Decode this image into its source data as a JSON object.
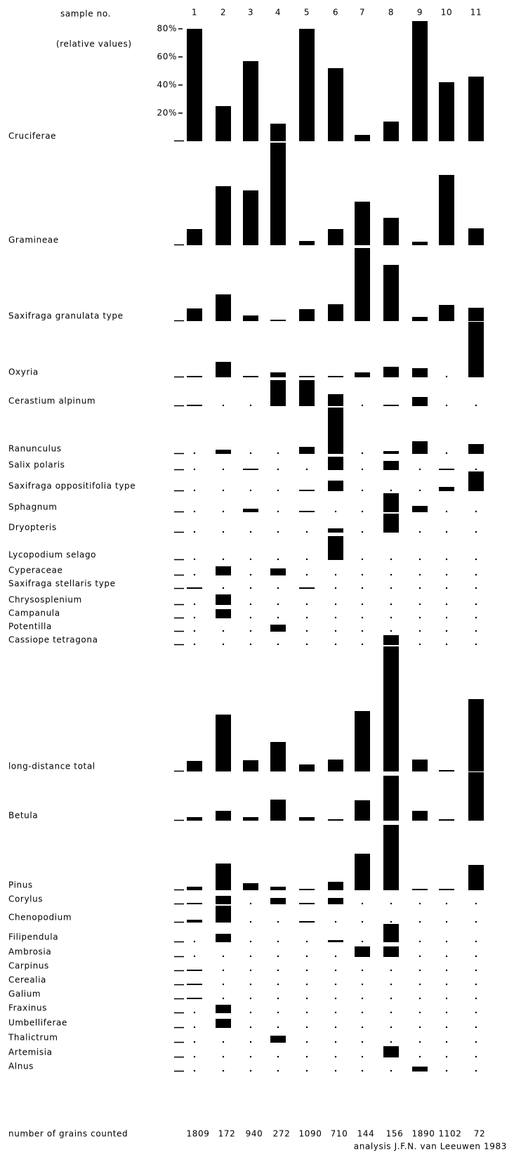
{
  "chart_data": {
    "type": "bar",
    "title": "sample no.",
    "y_label": "(relative values)",
    "categories": [
      "1",
      "2",
      "3",
      "4",
      "5",
      "6",
      "7",
      "8",
      "9",
      "10",
      "11"
    ],
    "ylim": [
      0,
      80
    ],
    "yticks": [
      {
        "value": 20,
        "label": "20%"
      },
      {
        "value": 40,
        "label": "40%"
      },
      {
        "value": 60,
        "label": "60%"
      },
      {
        "value": 80,
        "label": "80%"
      }
    ],
    "grid": false,
    "color": "#000000",
    "series": [
      {
        "name": "Cruciferae",
        "values": [
          80,
          25,
          57,
          12.5,
          80,
          52,
          4.5,
          14,
          85.5,
          42,
          46
        ]
      },
      {
        "name": "Gramineae",
        "values": [
          11.5,
          42,
          39,
          73,
          3,
          11.5,
          31,
          19.5,
          2.5,
          50,
          12
        ]
      },
      {
        "name": "Saxifraga granulata type",
        "values": [
          9,
          19,
          4,
          1,
          8.5,
          12,
          52,
          40,
          3,
          11.5,
          9.5
        ]
      },
      {
        "name": "Oxyria",
        "values": [
          1,
          11,
          1,
          3.5,
          1,
          1,
          3.5,
          7.5,
          6.5,
          0.5,
          39.5
        ]
      },
      {
        "name": "Cerastium alpinum",
        "values": [
          1,
          0.5,
          0.5,
          18.5,
          18.5,
          8.5,
          0.5,
          1,
          6.5,
          0.5,
          0.5
        ]
      },
      {
        "name": "Ranunculus",
        "values": [
          0.5,
          3,
          0.5,
          0.5,
          5,
          33,
          0.5,
          2,
          9,
          0.5,
          7
        ]
      },
      {
        "name": "Salix polaris",
        "values": [
          0.5,
          0.5,
          1,
          0.5,
          0.5,
          9.5,
          0.5,
          6.5,
          0.5,
          1,
          0.5
        ]
      },
      {
        "name": "Saxifraga oppositifolia type",
        "values": [
          0.5,
          0.5,
          0.5,
          0.5,
          1,
          7.5,
          0.5,
          0.5,
          0.5,
          3,
          14
        ]
      },
      {
        "name": "Sphagnum",
        "values": [
          0.5,
          0.5,
          2.5,
          0.5,
          1,
          0.5,
          0.5,
          13.5,
          4.5,
          0.5,
          0.5
        ]
      },
      {
        "name": "Dryopteris",
        "values": [
          0.5,
          0.5,
          0.5,
          0.5,
          0.5,
          3,
          0.5,
          13.5,
          0.5,
          0.5,
          0.5
        ]
      },
      {
        "name": "Lycopodium selago",
        "values": [
          0.5,
          0.5,
          0.5,
          0.5,
          0.5,
          17,
          0.5,
          0.5,
          0.5,
          0.5,
          0.5
        ]
      },
      {
        "name": "Cyperaceae",
        "values": [
          0.5,
          6.5,
          0.5,
          5,
          0.5,
          0.5,
          0.5,
          0.5,
          0.5,
          0.5,
          0.5
        ]
      },
      {
        "name": "Saxifraga stellaris type",
        "values": [
          1,
          0.5,
          0.5,
          0.5,
          1,
          0.5,
          0.5,
          0.5,
          0.5,
          0.5,
          0.5
        ]
      },
      {
        "name": "Chrysosplenium",
        "values": [
          0.5,
          7.5,
          0.5,
          0.5,
          0.5,
          0.5,
          0.5,
          0.5,
          0.5,
          0.5,
          0.5
        ]
      },
      {
        "name": "Campanula",
        "values": [
          0.5,
          6.5,
          0.5,
          0.5,
          0.5,
          0.5,
          0.5,
          0.5,
          0.5,
          0.5,
          0.5
        ]
      },
      {
        "name": "Potentilla",
        "values": [
          0.5,
          0.5,
          0.5,
          5,
          0.5,
          0.5,
          0.5,
          0.5,
          0.5,
          0.5,
          0.5
        ]
      },
      {
        "name": "Cassiope tetragona",
        "values": [
          0.5,
          0.5,
          0.5,
          0.5,
          0.5,
          0.5,
          0.5,
          7,
          0.5,
          0.5,
          0.5
        ]
      },
      {
        "name": "long-distance total",
        "values": [
          7.5,
          40.5,
          8,
          21,
          5,
          8.5,
          43,
          89,
          8.5,
          1,
          51.5
        ]
      },
      {
        "name": "Betula",
        "values": [
          2.5,
          7,
          2.5,
          15,
          2.5,
          1,
          14.5,
          32,
          7,
          1,
          34.5
        ]
      },
      {
        "name": "Pinus",
        "values": [
          2.5,
          19,
          5,
          2.5,
          1,
          6,
          26,
          46.5,
          1,
          1,
          18
        ]
      },
      {
        "name": "Corylus",
        "values": [
          1,
          6,
          0.5,
          4.5,
          1,
          4.5,
          0.5,
          0.5,
          0.5,
          0.5,
          0.5
        ]
      },
      {
        "name": "Chenopodium",
        "values": [
          2,
          12,
          0.5,
          0.5,
          1,
          0.5,
          0.5,
          0.5,
          0.5,
          0.5,
          0.5
        ]
      },
      {
        "name": "Filipendula",
        "values": [
          0.5,
          6,
          0.5,
          0.5,
          0.5,
          1.5,
          0.5,
          13,
          0.5,
          0.5,
          0.5
        ]
      },
      {
        "name": "Ambrosia",
        "values": [
          0.5,
          0.5,
          0.5,
          0.5,
          0.5,
          0.5,
          7.5,
          7.5,
          0.5,
          0.5,
          0.5
        ]
      },
      {
        "name": "Carpinus",
        "values": [
          1,
          0.5,
          0.5,
          0.5,
          0.5,
          0.5,
          0.5,
          0.5,
          0.5,
          0.5,
          0.5
        ]
      },
      {
        "name": "Cerealia",
        "values": [
          1,
          0.5,
          0.5,
          0.5,
          0.5,
          0.5,
          0.5,
          0.5,
          0.5,
          0.5,
          0.5
        ]
      },
      {
        "name": "Galium",
        "values": [
          1,
          0.5,
          0.5,
          0.5,
          0.5,
          0.5,
          0.5,
          0.5,
          0.5,
          0.5,
          0.5
        ]
      },
      {
        "name": "Fraxinus",
        "values": [
          0.5,
          6,
          0.5,
          0.5,
          0.5,
          0.5,
          0.5,
          0.5,
          0.5,
          0.5,
          0.5
        ]
      },
      {
        "name": "Umbelliferae",
        "values": [
          0.5,
          6.5,
          0.5,
          0.5,
          0.5,
          0.5,
          0.5,
          0.5,
          0.5,
          0.5,
          0.5
        ]
      },
      {
        "name": "Thalictrum",
        "values": [
          0.5,
          0.5,
          0.5,
          5,
          0.5,
          0.5,
          0.5,
          0.5,
          0.5,
          0.5,
          0.5
        ]
      },
      {
        "name": "Artemisia",
        "values": [
          0.5,
          0.5,
          0.5,
          0.5,
          0.5,
          0.5,
          0.5,
          8,
          0.5,
          0.5,
          0.5
        ]
      },
      {
        "name": "Alnus",
        "values": [
          0.5,
          0.5,
          0.5,
          0.5,
          0.5,
          0.5,
          0.5,
          0.5,
          3.5,
          0.5,
          0.5
        ]
      }
    ],
    "grains_counted": {
      "label": "number of grains counted",
      "values": [
        1809,
        172,
        940,
        272,
        1090,
        710,
        144,
        156,
        1890,
        1102,
        72
      ]
    },
    "annotation": "analysis J.F.N. van Leeuwen 1983"
  }
}
